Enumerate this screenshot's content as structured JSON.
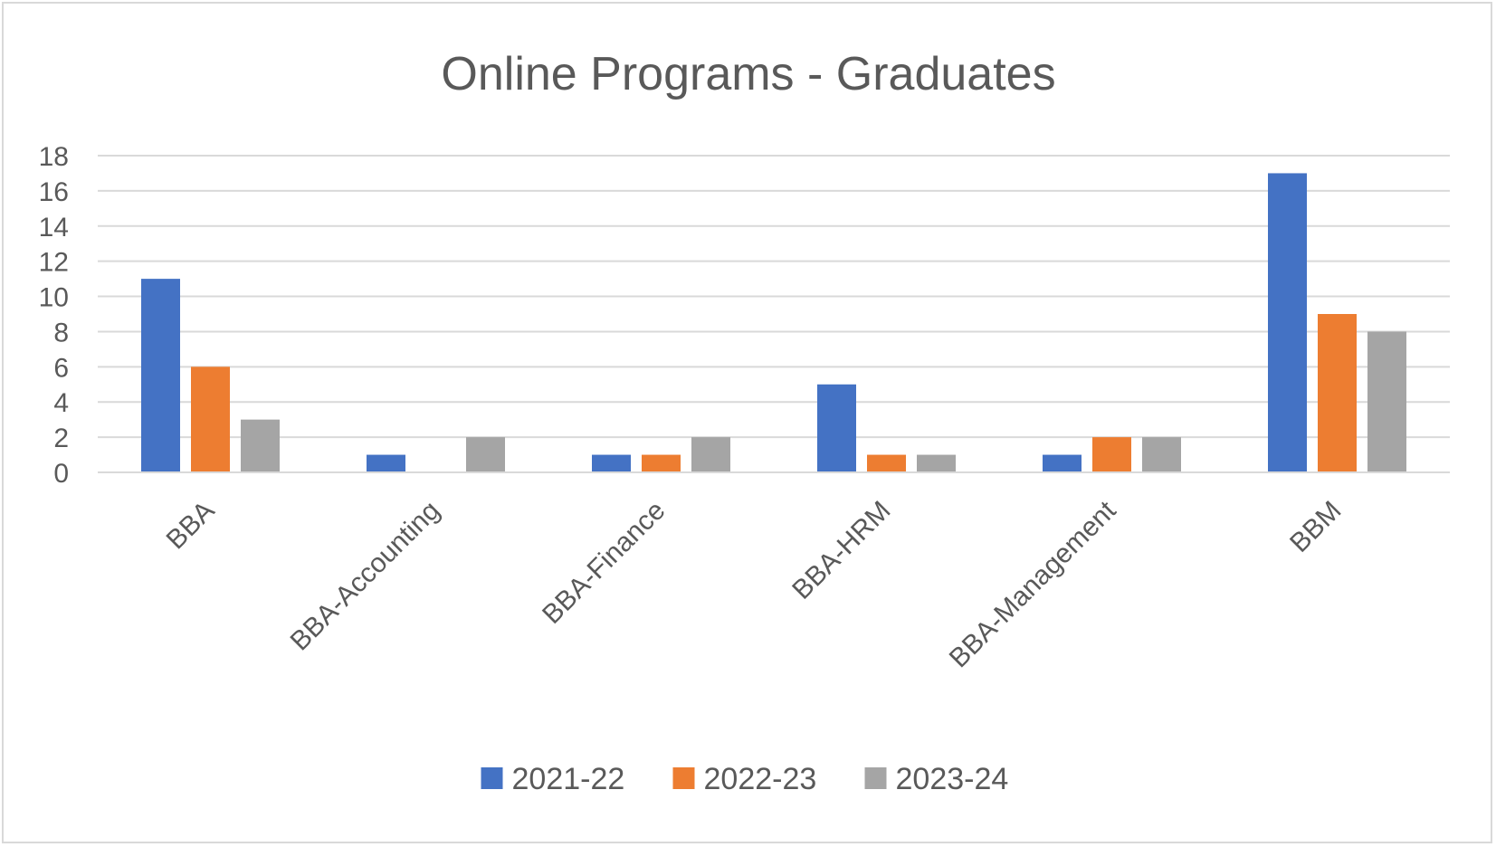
{
  "chart_data": {
    "type": "bar",
    "title": "Online Programs - Graduates",
    "xlabel": "",
    "ylabel": "",
    "categories": [
      "BBA",
      "BBA-Accounting",
      "BBA-Finance",
      "BBA-HRM",
      "BBA-Management",
      "BBM"
    ],
    "series": [
      {
        "name": "2021-22",
        "color": "#4472c4",
        "values": [
          11,
          1,
          1,
          5,
          1,
          17
        ]
      },
      {
        "name": "2022-23",
        "color": "#ed7d31",
        "values": [
          6,
          0,
          1,
          1,
          2,
          9
        ]
      },
      {
        "name": "2023-24",
        "color": "#a5a5a5",
        "values": [
          3,
          2,
          2,
          1,
          2,
          8
        ]
      }
    ],
    "ylim": [
      0,
      18
    ],
    "yticks": [
      "0",
      "2",
      "4",
      "6",
      "8",
      "10",
      "12",
      "14",
      "16",
      "18"
    ],
    "grid": true,
    "legend_position": "bottom"
  }
}
